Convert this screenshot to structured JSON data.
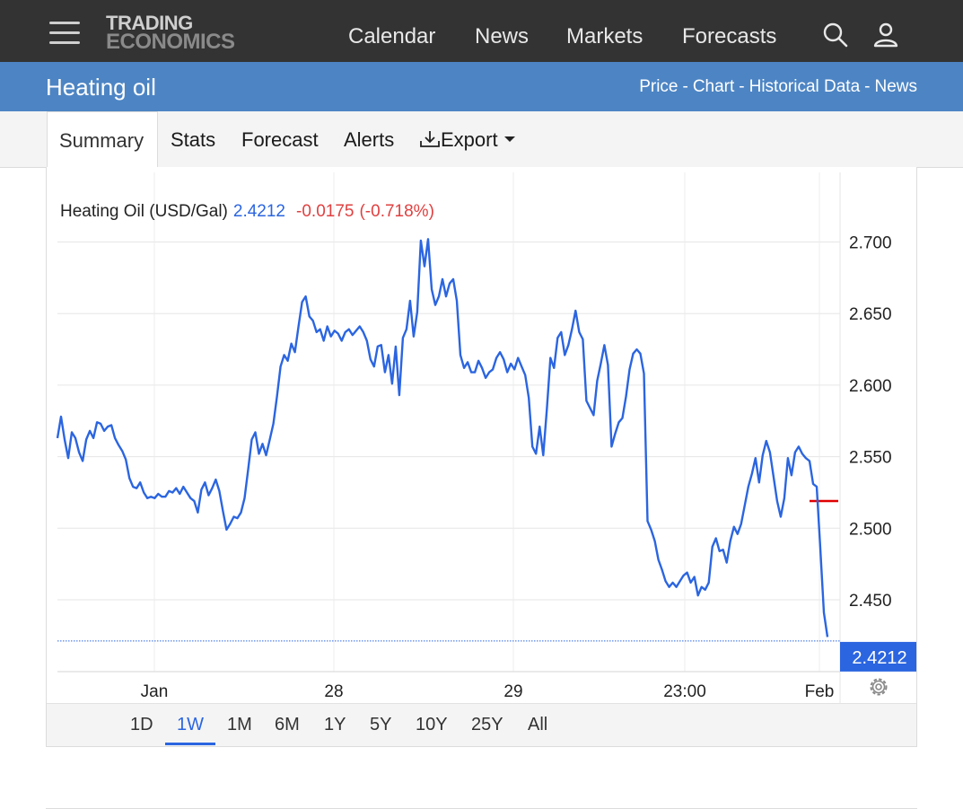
{
  "nav": {
    "logo_line1": "TRADING",
    "logo_line2": "ECONOMICS",
    "links": [
      "Calendar",
      "News",
      "Markets",
      "Forecasts"
    ],
    "icons": [
      "menu-icon",
      "search-icon",
      "user-icon"
    ]
  },
  "header": {
    "title": "Heating oil",
    "breadcrumbs": [
      "Price",
      "Chart",
      "Historical Data",
      "News"
    ],
    "separator": "-"
  },
  "tabs": {
    "active": "Summary",
    "items": [
      "Stats",
      "Forecast",
      "Alerts",
      "Export"
    ],
    "export_icon": "download-icon",
    "export_caret": "caret-down-icon"
  },
  "quote": {
    "name": "Heating Oil (USD/Gal)",
    "price": "2.4212",
    "change": "-0.0175",
    "change_pct": "(-0.718%)"
  },
  "range": {
    "options": [
      "1D",
      "1W",
      "1M",
      "6M",
      "1Y",
      "5Y",
      "10Y",
      "25Y",
      "All"
    ],
    "active": "1W"
  },
  "settings_icon": "gear-icon",
  "colors": {
    "nav_bg": "#333333",
    "title_bar": "#4d85c4",
    "line": "#2b65e0",
    "negative": "#e04040",
    "marker": "#e00000"
  },
  "chart_data": {
    "type": "line",
    "title": "Heating Oil (USD/Gal)",
    "x_labels": [
      "Jan",
      "28",
      "29",
      "23:00",
      "Feb"
    ],
    "ylim": [
      2.4,
      2.74
    ],
    "y_ticks": [
      "2.450",
      "2.500",
      "2.550",
      "2.600",
      "2.650",
      "2.700"
    ],
    "last_value": "2.4212",
    "previous_close": 2.519,
    "grid": true,
    "series": [
      {
        "values": [
          2.563,
          2.578,
          2.562,
          2.549,
          2.567,
          2.563,
          2.553,
          2.547,
          2.562,
          2.568,
          2.563,
          2.574,
          2.573,
          2.568,
          2.571,
          2.572,
          2.563,
          2.558,
          2.554,
          2.548,
          2.535,
          2.529,
          2.528,
          2.532,
          2.525,
          2.521,
          2.522,
          2.521,
          2.524,
          2.522,
          2.522,
          2.526,
          2.525,
          2.528,
          2.524,
          2.529,
          2.525,
          2.521,
          2.519,
          2.511,
          2.527,
          2.532,
          2.523,
          2.528,
          2.534,
          2.526,
          2.512,
          2.499,
          2.503,
          2.508,
          2.507,
          2.511,
          2.521,
          2.541,
          2.562,
          2.567,
          2.552,
          2.559,
          2.551,
          2.562,
          2.573,
          2.592,
          2.613,
          2.621,
          2.617,
          2.629,
          2.623,
          2.641,
          2.658,
          2.662,
          2.648,
          2.645,
          2.637,
          2.639,
          2.631,
          2.641,
          2.634,
          2.638,
          2.636,
          2.631,
          2.637,
          2.639,
          2.635,
          2.638,
          2.641,
          2.637,
          2.631,
          2.618,
          2.613,
          2.627,
          2.628,
          2.609,
          2.621,
          2.601,
          2.627,
          2.593,
          2.633,
          2.639,
          2.659,
          2.634,
          2.651,
          2.701,
          2.683,
          2.702,
          2.667,
          2.656,
          2.662,
          2.674,
          2.662,
          2.671,
          2.674,
          2.659,
          2.621,
          2.612,
          2.616,
          2.609,
          2.609,
          2.617,
          2.612,
          2.605,
          2.609,
          2.611,
          2.619,
          2.623,
          2.618,
          2.609,
          2.615,
          2.611,
          2.619,
          2.613,
          2.607,
          2.591,
          2.557,
          2.552,
          2.571,
          2.551,
          2.583,
          2.619,
          2.612,
          2.633,
          2.637,
          2.621,
          2.628,
          2.639,
          2.652,
          2.637,
          2.632,
          2.589,
          2.584,
          2.579,
          2.603,
          2.615,
          2.628,
          2.614,
          2.557,
          2.566,
          2.574,
          2.577,
          2.592,
          2.611,
          2.622,
          2.625,
          2.622,
          2.608,
          2.505,
          2.499,
          2.491,
          2.478,
          2.471,
          2.463,
          2.459,
          2.462,
          2.459,
          2.463,
          2.467,
          2.469,
          2.462,
          2.466,
          2.453,
          2.459,
          2.457,
          2.462,
          2.487,
          2.493,
          2.484,
          2.485,
          2.476,
          2.491,
          2.501,
          2.496,
          2.503,
          2.516,
          2.529,
          2.538,
          2.549,
          2.532,
          2.551,
          2.561,
          2.553,
          2.536,
          2.519,
          2.508,
          2.521,
          2.549,
          2.537,
          2.553,
          2.557,
          2.552,
          2.549,
          2.547,
          2.531,
          2.529,
          2.486,
          2.441,
          2.424
        ]
      }
    ]
  }
}
